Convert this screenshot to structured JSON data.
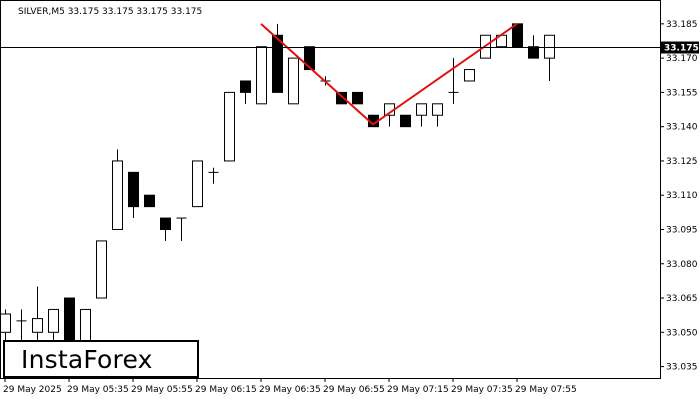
{
  "chart_data": {
    "type": "candlestick",
    "title": "SILVER,M5  33.175 33.175 33.175 33.175",
    "current_price_label": "33.175",
    "ylim": [
      33.03,
      33.195
    ],
    "y_ticks": [
      "33.185",
      "33.170",
      "33.155",
      "33.140",
      "33.125",
      "33.110",
      "33.095",
      "33.080",
      "33.065",
      "33.050",
      "33.035"
    ],
    "x_ticks": [
      "29 May 2025",
      "29 May 05:35",
      "29 May 05:55",
      "29 May 06:15",
      "29 May 06:35",
      "29 May 06:55",
      "29 May 07:15",
      "29 May 07:35",
      "29 May 07:55"
    ],
    "candles": [
      {
        "o": 33.05,
        "h": 33.06,
        "l": 33.04,
        "c": 33.058
      },
      {
        "o": 33.055,
        "h": 33.06,
        "l": 33.04,
        "c": 33.055
      },
      {
        "o": 33.05,
        "h": 33.07,
        "l": 33.045,
        "c": 33.056
      },
      {
        "o": 33.05,
        "h": 33.06,
        "l": 33.045,
        "c": 33.06
      },
      {
        "o": 33.065,
        "h": 33.065,
        "l": 33.035,
        "c": 33.04
      },
      {
        "o": 33.04,
        "h": 33.06,
        "l": 33.035,
        "c": 33.06
      },
      {
        "o": 33.065,
        "h": 33.09,
        "l": 33.065,
        "c": 33.09
      },
      {
        "o": 33.095,
        "h": 33.13,
        "l": 33.095,
        "c": 33.125
      },
      {
        "o": 33.12,
        "h": 33.12,
        "l": 33.1,
        "c": 33.105
      },
      {
        "o": 33.11,
        "h": 33.11,
        "l": 33.105,
        "c": 33.105
      },
      {
        "o": 33.1,
        "h": 33.1,
        "l": 33.09,
        "c": 33.095
      },
      {
        "o": 33.1,
        "h": 33.1,
        "l": 33.09,
        "c": 33.1
      },
      {
        "o": 33.105,
        "h": 33.125,
        "l": 33.105,
        "c": 33.125
      },
      {
        "o": 33.12,
        "h": 33.122,
        "l": 33.115,
        "c": 33.12
      },
      {
        "o": 33.125,
        "h": 33.155,
        "l": 33.125,
        "c": 33.155
      },
      {
        "o": 33.16,
        "h": 33.16,
        "l": 33.15,
        "c": 33.155
      },
      {
        "o": 33.15,
        "h": 33.175,
        "l": 33.15,
        "c": 33.175
      },
      {
        "o": 33.18,
        "h": 33.185,
        "l": 33.155,
        "c": 33.155
      },
      {
        "o": 33.15,
        "h": 33.17,
        "l": 33.15,
        "c": 33.17
      },
      {
        "o": 33.175,
        "h": 33.175,
        "l": 33.165,
        "c": 33.165
      },
      {
        "o": 33.16,
        "h": 33.162,
        "l": 33.158,
        "c": 33.16
      },
      {
        "o": 33.155,
        "h": 33.155,
        "l": 33.15,
        "c": 33.15
      },
      {
        "o": 33.155,
        "h": 33.155,
        "l": 33.15,
        "c": 33.15
      },
      {
        "o": 33.145,
        "h": 33.145,
        "l": 33.14,
        "c": 33.14
      },
      {
        "o": 33.145,
        "h": 33.15,
        "l": 33.14,
        "c": 33.15
      },
      {
        "o": 33.145,
        "h": 33.145,
        "l": 33.14,
        "c": 33.14
      },
      {
        "o": 33.145,
        "h": 33.15,
        "l": 33.14,
        "c": 33.15
      },
      {
        "o": 33.145,
        "h": 33.15,
        "l": 33.14,
        "c": 33.15
      },
      {
        "o": 33.155,
        "h": 33.17,
        "l": 33.15,
        "c": 33.155
      },
      {
        "o": 33.16,
        "h": 33.165,
        "l": 33.16,
        "c": 33.165
      },
      {
        "o": 33.17,
        "h": 33.18,
        "l": 33.17,
        "c": 33.18
      },
      {
        "o": 33.175,
        "h": 33.18,
        "l": 33.175,
        "c": 33.18
      },
      {
        "o": 33.185,
        "h": 33.185,
        "l": 33.175,
        "c": 33.175
      },
      {
        "o": 33.175,
        "h": 33.18,
        "l": 33.17,
        "c": 33.17
      },
      {
        "o": 33.17,
        "h": 33.18,
        "l": 33.16,
        "c": 33.18
      }
    ],
    "pattern": {
      "color": "#e01010",
      "points": [
        {
          "candle": 16,
          "price": 33.185
        },
        {
          "candle": 23,
          "price": 33.141
        },
        {
          "candle": 32,
          "price": 33.185
        }
      ]
    },
    "colors": {
      "bull_body": "#ffffff",
      "bear_body": "#000000",
      "outline": "#000000",
      "price_line": "#000000"
    }
  },
  "logo": {
    "text": "InstaForex"
  }
}
